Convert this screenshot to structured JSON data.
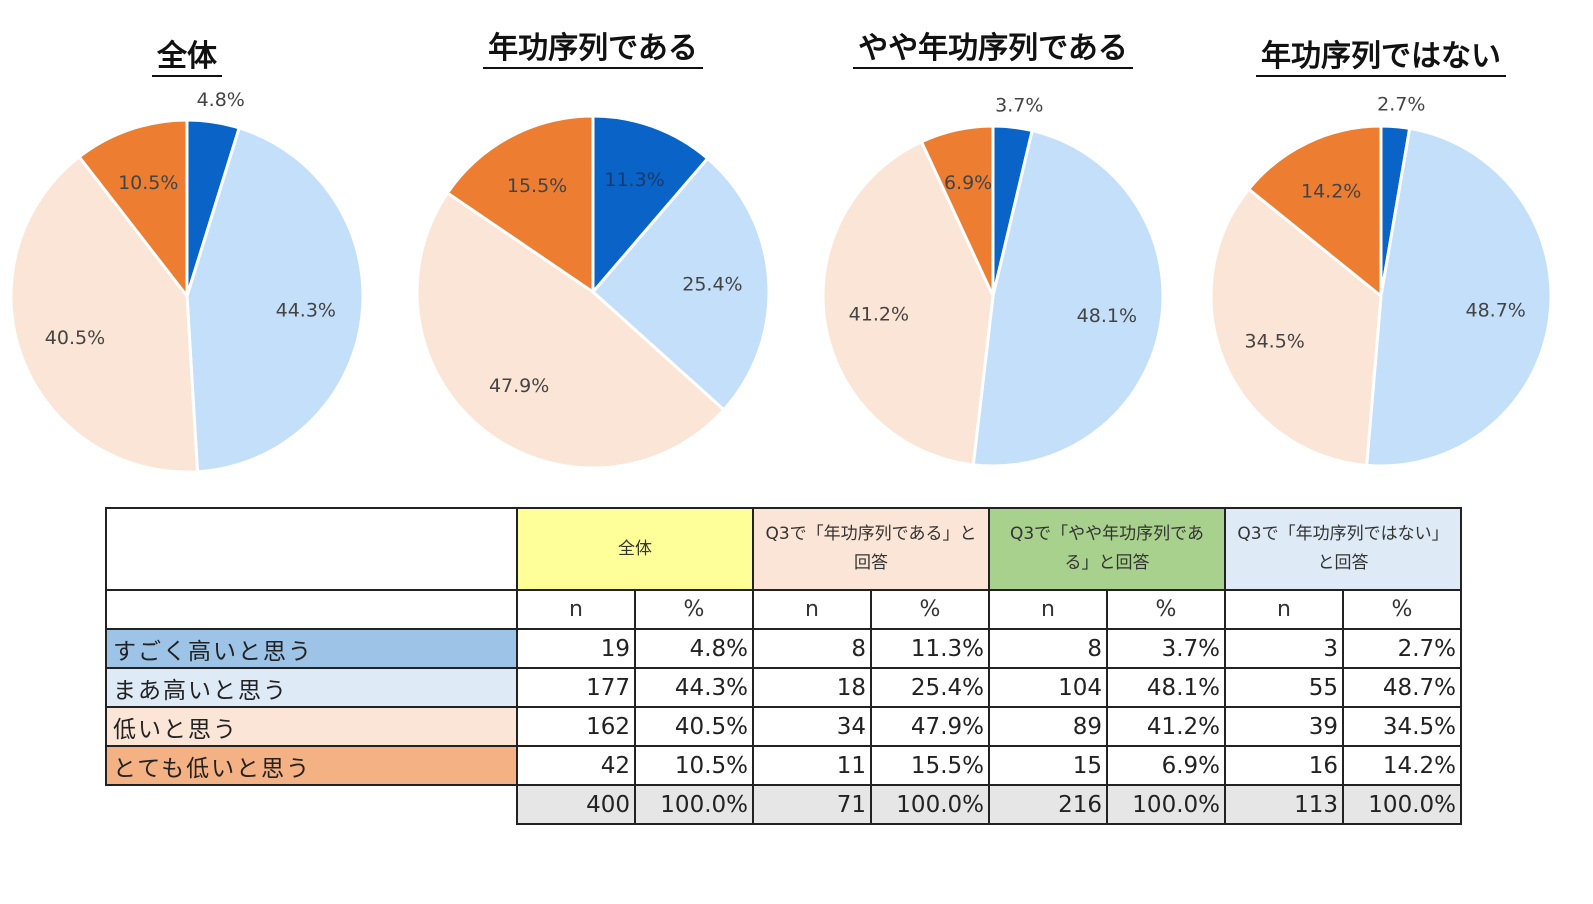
{
  "chart_data": [
    {
      "type": "pie",
      "title": "全体",
      "categories": [
        "すごく高いと思う",
        "まあ高いと思う",
        "低いと思う",
        "とても低いと思う"
      ],
      "values": [
        4.8,
        44.3,
        40.5,
        10.5
      ],
      "labels": [
        "4.8%",
        "44.3%",
        "40.5%",
        "10.5%"
      ],
      "colors": [
        "#0a63c6",
        "#c3dffa",
        "#fbe5d6",
        "#ed7d31"
      ]
    },
    {
      "type": "pie",
      "title": "年功序列である",
      "categories": [
        "すごく高いと思う",
        "まあ高いと思う",
        "低いと思う",
        "とても低いと思う"
      ],
      "values": [
        11.3,
        25.4,
        47.9,
        15.5
      ],
      "labels": [
        "11.3%",
        "25.4%",
        "47.9%",
        "15.5%"
      ],
      "colors": [
        "#0a63c6",
        "#c3dffa",
        "#fbe5d6",
        "#ed7d31"
      ]
    },
    {
      "type": "pie",
      "title": "やや年功序列である",
      "categories": [
        "すごく高いと思う",
        "まあ高いと思う",
        "低いと思う",
        "とても低いと思う"
      ],
      "values": [
        3.7,
        48.1,
        41.2,
        6.9
      ],
      "labels": [
        "3.7%",
        "48.1%",
        "41.2%",
        "6.9%"
      ],
      "colors": [
        "#0a63c6",
        "#c3dffa",
        "#fbe5d6",
        "#ed7d31"
      ]
    },
    {
      "type": "pie",
      "title": "年功序列ではない",
      "categories": [
        "すごく高いと思う",
        "まあ高いと思う",
        "低いと思う",
        "とても低いと思う"
      ],
      "values": [
        2.7,
        48.7,
        34.5,
        14.2
      ],
      "labels": [
        "2.7%",
        "48.7%",
        "34.5%",
        "14.2%"
      ],
      "colors": [
        "#0a63c6",
        "#c3dffa",
        "#fbe5d6",
        "#ed7d31"
      ]
    }
  ],
  "table": {
    "groups": [
      {
        "label_lines": [
          "全体"
        ],
        "color": "#ffff99"
      },
      {
        "label_lines": [
          "Q3で「年功序列である」と",
          "回答"
        ],
        "color": "#fbe5d6"
      },
      {
        "label_lines": [
          "Q3で「やや年功序列であ",
          "る」と回答"
        ],
        "color": "#a9d18e"
      },
      {
        "label_lines": [
          "Q3で「年功序列ではない」",
          "と回答"
        ],
        "color": "#deebf7"
      }
    ],
    "subheaders": [
      "n",
      "%"
    ],
    "rows": [
      {
        "label": "すごく高いと思う",
        "color": "#9dc3e6",
        "cells": [
          "19",
          "4.8%",
          "8",
          "11.3%",
          "8",
          "3.7%",
          "3",
          "2.7%"
        ]
      },
      {
        "label": "まあ高いと思う",
        "color": "#deebf7",
        "cells": [
          "177",
          "44.3%",
          "18",
          "25.4%",
          "104",
          "48.1%",
          "55",
          "48.7%"
        ]
      },
      {
        "label": "低いと思う",
        "color": "#fbe5d6",
        "cells": [
          "162",
          "40.5%",
          "34",
          "47.9%",
          "89",
          "41.2%",
          "39",
          "34.5%"
        ]
      },
      {
        "label": "とても低いと思う",
        "color": "#f4b183",
        "cells": [
          "42",
          "10.5%",
          "11",
          "15.5%",
          "15",
          "6.9%",
          "16",
          "14.2%"
        ]
      }
    ],
    "total": {
      "cells": [
        "400",
        "100.0%",
        "71",
        "100.0%",
        "216",
        "100.0%",
        "113",
        "100.0%"
      ]
    }
  }
}
